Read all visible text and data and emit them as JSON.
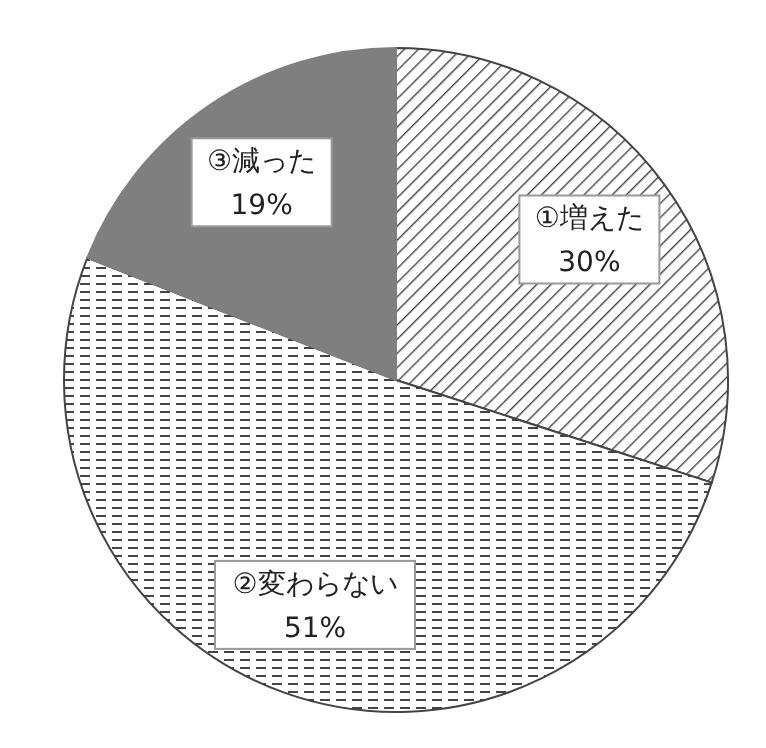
{
  "chart_data": {
    "type": "pie",
    "categories": [
      "①増えた",
      "②変わらない",
      "③減った"
    ],
    "values": [
      30,
      51,
      19
    ],
    "value_labels": [
      "30%",
      "51%",
      "19%"
    ],
    "colors": [
      "#444444",
      "#444444",
      "#7f7f7f"
    ],
    "legend": false
  }
}
